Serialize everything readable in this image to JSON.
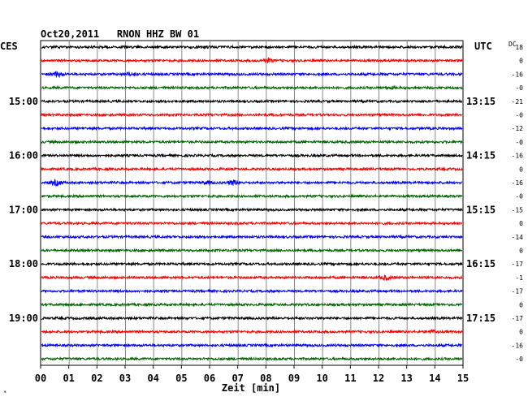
{
  "chart_data": {
    "type": "line",
    "title": "Oct20,2011   RNON HHZ BW 01",
    "left_timezone": "CES",
    "right_timezone": "UTC",
    "dc_label": "DC",
    "xlabel": "Zeit [min]",
    "x_ticks": [
      "00",
      "01",
      "02",
      "03",
      "04",
      "05",
      "06",
      "07",
      "08",
      "09",
      "10",
      "11",
      "12",
      "13",
      "14",
      "15"
    ],
    "xlim": [
      0,
      15
    ],
    "grid": true,
    "trace_colors": [
      "#000000",
      "#ff0000",
      "#0000ff",
      "#006400"
    ],
    "left_hour_labels": [
      {
        "trace": 4,
        "label": "15:00"
      },
      {
        "trace": 8,
        "label": "16:00"
      },
      {
        "trace": 12,
        "label": "17:00"
      },
      {
        "trace": 16,
        "label": "18:00"
      },
      {
        "trace": 20,
        "label": "19:00"
      }
    ],
    "right_hour_labels": [
      {
        "trace": 4,
        "label": "13:15"
      },
      {
        "trace": 8,
        "label": "14:15"
      },
      {
        "trace": 12,
        "label": "15:15"
      },
      {
        "trace": 16,
        "label": "16:15"
      },
      {
        "trace": 20,
        "label": "17:15"
      }
    ],
    "dc_offsets": [
      "18",
      "0",
      "-16",
      "-0",
      "-21",
      "-0",
      "-12",
      "-0",
      "-16",
      "0",
      "-16",
      "-0",
      "-15",
      "0",
      "-14",
      "0",
      "-17",
      "-1",
      "-17",
      "0",
      "-17",
      "0",
      "-16",
      "-0"
    ],
    "events": [
      {
        "trace": 1,
        "x": 8.05,
        "amplitude": 2.0
      },
      {
        "trace": 2,
        "x": 0.6,
        "amplitude": 2.2
      },
      {
        "trace": 2,
        "x": 3.2,
        "amplitude": 1.8
      },
      {
        "trace": 3,
        "x": 12.4,
        "amplitude": 1.2
      },
      {
        "trace": 10,
        "x": 0.55,
        "amplitude": 2.6
      },
      {
        "trace": 10,
        "x": 6.85,
        "amplitude": 2.3
      },
      {
        "trace": 10,
        "x": 5.9,
        "amplitude": 1.3
      },
      {
        "trace": 17,
        "x": 12.25,
        "amplitude": 2.4
      },
      {
        "trace": 21,
        "x": 13.9,
        "amplitude": 1.7
      }
    ],
    "footer_mark": "*"
  }
}
